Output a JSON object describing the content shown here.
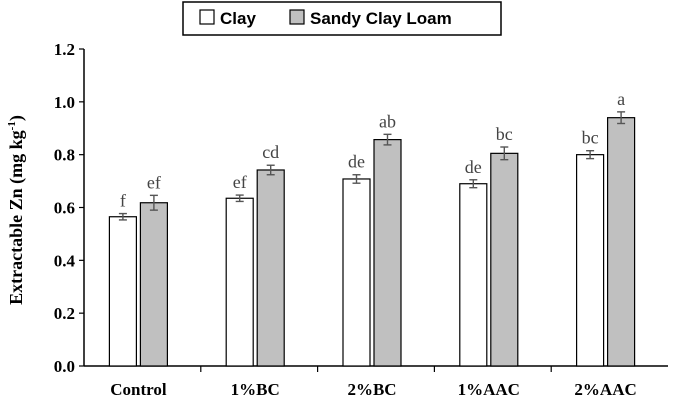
{
  "chart_data": {
    "type": "bar",
    "categories": [
      "Control",
      "1%BC",
      "2%BC",
      "1%AAC",
      "2%AAC"
    ],
    "series": [
      {
        "name": "Clay",
        "color": "#ffffff",
        "values": [
          0.565,
          0.635,
          0.708,
          0.69,
          0.8
        ],
        "errors": [
          0.012,
          0.012,
          0.016,
          0.015,
          0.015
        ],
        "labels": [
          "f",
          "ef",
          "de",
          "de",
          "bc"
        ]
      },
      {
        "name": "Sandy Clay Loam",
        "color": "#c0c0c0",
        "values": [
          0.618,
          0.742,
          0.857,
          0.805,
          0.94
        ],
        "errors": [
          0.028,
          0.018,
          0.02,
          0.024,
          0.022
        ],
        "labels": [
          "ef",
          "cd",
          "ab",
          "bc",
          "a"
        ]
      }
    ],
    "ylabel_main": "Extractable Zn (mg kg",
    "ylabel_sup": "-1",
    "ylabel_end": ")",
    "ylim": [
      0,
      1.2
    ],
    "yticks": [
      "0.0",
      "0.2",
      "0.4",
      "0.6",
      "0.8",
      "1.0",
      "1.2"
    ],
    "grid": false,
    "legend_position": "top"
  }
}
